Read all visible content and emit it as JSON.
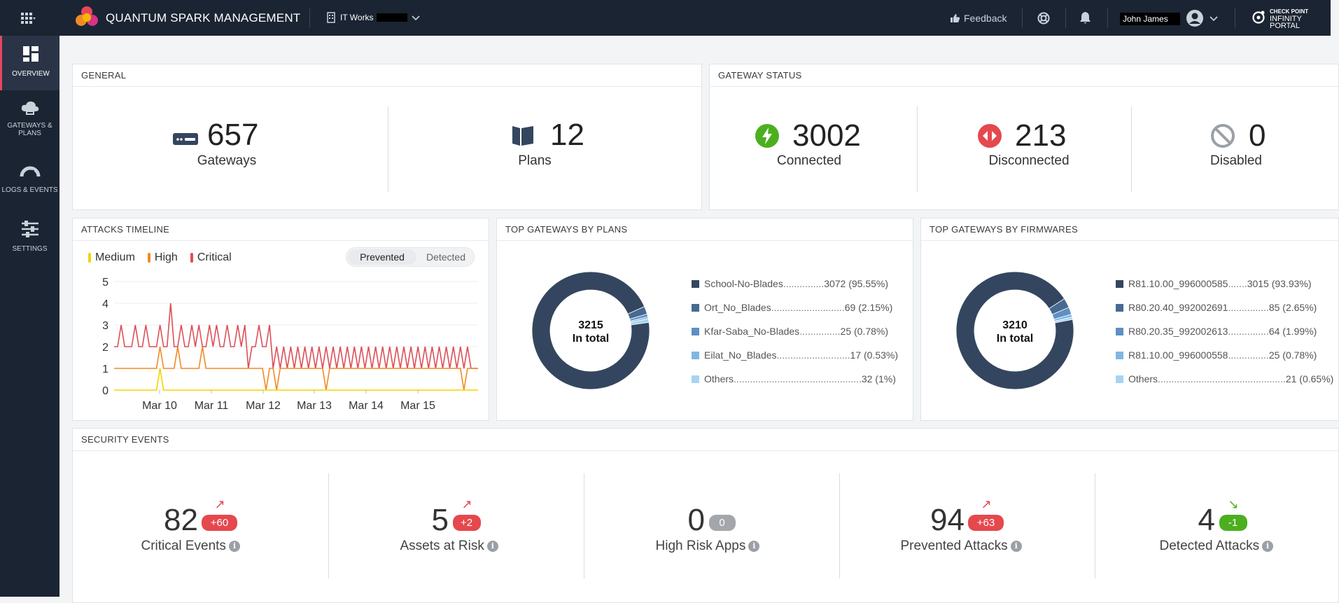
{
  "app": {
    "title": "QUANTUM SPARK MANAGEMENT",
    "org": "IT Works"
  },
  "topbar": {
    "feedback": "Feedback",
    "user": "John James",
    "brand_line1": "CHECK POINT",
    "brand_line2": "INFINITY PORTAL"
  },
  "sidebar": {
    "items": [
      {
        "label1": "OVERVIEW",
        "label2": ""
      },
      {
        "label1": "GATEWAYS &",
        "label2": "PLANS"
      },
      {
        "label1": "LOGS & EVENTS",
        "label2": ""
      },
      {
        "label1": "SETTINGS",
        "label2": ""
      }
    ]
  },
  "general": {
    "title": "GENERAL",
    "gateways_value": "657",
    "gateways_label": "Gateways",
    "plans_value": "12",
    "plans_label": "Plans"
  },
  "gateway_status": {
    "title": "GATEWAY STATUS",
    "connected_value": "3002",
    "connected_label": "Connected",
    "disconnected_value": "213",
    "disconnected_label": "Disconnected",
    "disabled_value": "0",
    "disabled_label": "Disabled"
  },
  "attacks": {
    "title": "ATTACKS TIMELINE",
    "legend": [
      "Medium",
      "High",
      "Critical"
    ],
    "toggle_on": "Prevented",
    "toggle_off": "Detected",
    "colors": {
      "medium": "#f5d300",
      "high": "#f08a24",
      "critical": "#dc4f57"
    }
  },
  "top_plans": {
    "title": "TOP GATEWAYS BY PLANS",
    "total": "3215",
    "total_label": "In total",
    "items": [
      {
        "name": "School-No-Blades",
        "dots": "...............",
        "value": "3072 (95.55%)",
        "color": "#34465f"
      },
      {
        "name": "Ort_No_Blades",
        "dots": "...........................",
        "value": "69 (2.15%)",
        "color": "#476a91"
      },
      {
        "name": "Kfar-Saba_No-Blades",
        "dots": "...............",
        "value": "25 (0.78%)",
        "color": "#5f8fc4"
      },
      {
        "name": "Eilat_No_Blades",
        "dots": "...........................",
        "value": "17 (0.53%)",
        "color": "#7fb7e4"
      },
      {
        "name": "Others",
        "dots": "...............................................",
        "value": "32 (1%)",
        "color": "#a9d3f2"
      }
    ]
  },
  "top_firmwares": {
    "title": "TOP GATEWAYS BY FIRMWARES",
    "total": "3210",
    "total_label": "In total",
    "items": [
      {
        "name": "R81.10.00_996000585",
        "dots": ".......",
        "value": "3015 (93.93%)",
        "color": "#34465f"
      },
      {
        "name": "R80.20.40_992002691",
        "dots": "...............",
        "value": "85 (2.65%)",
        "color": "#476a91"
      },
      {
        "name": "R80.20.35_992002613",
        "dots": "...............",
        "value": "64 (1.99%)",
        "color": "#5f8fc4"
      },
      {
        "name": "R81.10.00_996000558",
        "dots": "...............",
        "value": "25 (0.78%)",
        "color": "#7fb7e4"
      },
      {
        "name": "Others",
        "dots": "...............................................",
        "value": "21 (0.65%)",
        "color": "#a9d3f2"
      }
    ]
  },
  "security_events": {
    "title": "SECURITY EVENTS",
    "items": [
      {
        "value": "82",
        "badge": "+60",
        "label": "Critical Events",
        "badge_color": "#e5484d",
        "arrow": "↗",
        "arrow_color": "#e5484d"
      },
      {
        "value": "5",
        "badge": "+2",
        "label": "Assets at Risk",
        "badge_color": "#e5484d",
        "arrow": "↗",
        "arrow_color": "#e5484d"
      },
      {
        "value": "0",
        "badge": "0",
        "label": "High Risk Apps",
        "badge_color": "#a3a6ab",
        "arrow": "",
        "arrow_color": "#a3a6ab"
      },
      {
        "value": "94",
        "badge": "+63",
        "label": "Prevented Attacks",
        "badge_color": "#e5484d",
        "arrow": "↗",
        "arrow_color": "#e5484d"
      },
      {
        "value": "4",
        "badge": "-1",
        "label": "Detected Attacks",
        "badge_color": "#4caf1f",
        "arrow": "↘",
        "arrow_color": "#4caf1f"
      }
    ]
  },
  "chart_data": {
    "type": "line",
    "title": "ATTACKS TIMELINE",
    "x_tick_labels": [
      "Mar 10",
      "Mar 11",
      "Mar 12",
      "Mar 13",
      "Mar 14",
      "Mar 15"
    ],
    "ylim": [
      0,
      5
    ],
    "y_ticks": [
      0,
      1,
      2,
      3,
      4,
      5
    ],
    "grid": true,
    "legend_position": "top-left",
    "series": [
      {
        "name": "Critical",
        "color": "#dc4f57",
        "values": [
          2,
          2,
          3,
          2,
          2,
          2,
          3,
          2,
          2,
          3,
          2,
          2,
          2,
          3,
          2,
          2,
          4,
          2,
          2,
          3,
          2,
          2,
          3,
          2,
          3,
          2,
          2,
          3,
          2,
          3,
          2,
          2,
          3,
          2,
          2,
          3,
          2,
          3,
          1,
          2,
          2,
          3,
          2,
          2,
          3,
          1,
          2,
          1,
          2,
          1,
          2,
          1,
          2,
          1,
          2,
          1,
          2,
          1,
          2,
          1,
          2,
          1,
          2,
          1,
          2,
          1,
          2,
          1,
          2,
          1,
          2,
          1,
          2,
          1,
          2,
          1,
          2,
          1,
          2,
          1,
          2,
          1,
          2,
          1,
          2,
          1,
          2,
          1,
          2,
          1,
          2,
          1,
          2,
          1,
          2,
          1,
          2,
          1,
          2,
          1,
          2,
          1,
          1,
          1
        ]
      },
      {
        "name": "High",
        "color": "#f08a24",
        "values": [
          1,
          1,
          1,
          1,
          1,
          1,
          1,
          1,
          1,
          1,
          1,
          1,
          1,
          2,
          1,
          1,
          1,
          1,
          2,
          1,
          1,
          1,
          1,
          1,
          1,
          2,
          1,
          1,
          1,
          1,
          1,
          1,
          1,
          1,
          1,
          1,
          1,
          1,
          1,
          1,
          1,
          1,
          1,
          0,
          1,
          1,
          0,
          1,
          1,
          1,
          1,
          1,
          1,
          1,
          1,
          1,
          1,
          1,
          1,
          1,
          0,
          1,
          1,
          1,
          1,
          1,
          1,
          1,
          1,
          1,
          1,
          1,
          1,
          1,
          1,
          1,
          1,
          1,
          1,
          1,
          1,
          1,
          1,
          1,
          1,
          1,
          1,
          1,
          1,
          1,
          1,
          1,
          1,
          1,
          1,
          1,
          1,
          1,
          1,
          0,
          1,
          1,
          1,
          1
        ]
      },
      {
        "name": "Medium",
        "color": "#f5d300",
        "values": [
          0,
          0,
          0,
          0,
          0,
          0,
          0,
          0,
          0,
          0,
          0,
          0,
          0,
          1,
          0,
          0,
          0,
          0,
          0,
          0,
          0,
          0,
          0,
          0,
          0,
          0,
          0,
          0,
          0,
          0,
          0,
          0,
          0,
          0,
          0,
          0,
          0,
          0,
          0,
          0,
          0,
          0,
          0,
          0,
          0,
          0,
          0,
          0,
          0,
          0,
          0,
          0,
          0,
          0,
          0,
          0,
          0,
          0,
          0,
          0,
          0,
          0,
          0,
          0,
          0,
          0,
          0,
          0,
          0,
          0,
          0,
          0,
          0,
          0,
          0,
          0,
          0,
          0,
          0,
          0,
          0,
          0,
          0,
          0,
          0,
          0,
          0,
          0,
          0,
          0,
          0,
          0,
          0,
          0,
          0,
          0,
          0,
          0,
          0,
          0,
          0,
          0,
          0,
          0
        ]
      }
    ]
  }
}
